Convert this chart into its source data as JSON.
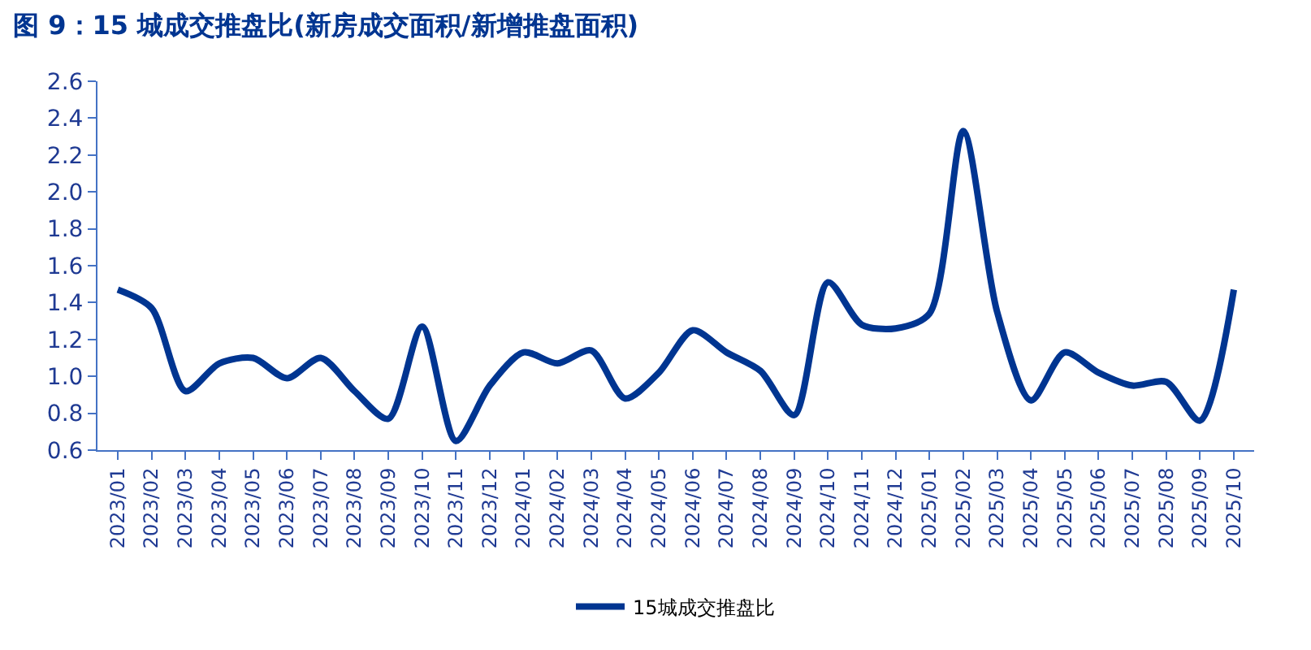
{
  "chart_data": {
    "type": "line",
    "title": "图 9：15 城成交推盘比(新房成交面积/新增推盘面积)",
    "categories": [
      "2023/01",
      "2023/02",
      "2023/03",
      "2023/04",
      "2023/05",
      "2023/06",
      "2023/07",
      "2023/08",
      "2023/09",
      "2023/10",
      "2023/11",
      "2023/12",
      "2024/01",
      "2024/02",
      "2024/03",
      "2024/04",
      "2024/05",
      "2024/06",
      "2024/07",
      "2024/08",
      "2024/09",
      "2024/10",
      "2024/11",
      "2024/12",
      "2025/01",
      "2025/02",
      "2025/03",
      "2025/04",
      "2025/05",
      "2025/06",
      "2025/07",
      "2025/08",
      "2025/09",
      "2025/10"
    ],
    "series": [
      {
        "name": "15城成交推盘比",
        "color": "#003591",
        "values": [
          1.47,
          1.37,
          0.92,
          1.07,
          1.1,
          0.99,
          1.1,
          0.92,
          0.77,
          1.27,
          0.65,
          0.95,
          1.13,
          1.07,
          1.14,
          0.88,
          1.02,
          1.25,
          1.13,
          1.03,
          0.79,
          1.51,
          1.28,
          1.26,
          1.34,
          2.33,
          1.35,
          0.87,
          1.13,
          1.02,
          0.95,
          0.97,
          0.76,
          1.47
        ]
      }
    ],
    "ylim": [
      0.6,
      2.6
    ],
    "yticks": [
      {
        "value": 0.6,
        "label": "0.6"
      },
      {
        "value": 0.8,
        "label": "0.8"
      },
      {
        "value": 1.0,
        "label": "1.0"
      },
      {
        "value": 1.2,
        "label": "1.2"
      },
      {
        "value": 1.4,
        "label": "1.4"
      },
      {
        "value": 1.6,
        "label": "1.6"
      },
      {
        "value": 1.8,
        "label": "1.8"
      },
      {
        "value": 2.0,
        "label": "2.0"
      },
      {
        "value": 2.2,
        "label": "2.2"
      },
      {
        "value": 2.4,
        "label": "2.4"
      },
      {
        "value": 2.6,
        "label": "2.6"
      }
    ],
    "legend": "bottom",
    "marker": "none",
    "line_style": "solid"
  }
}
